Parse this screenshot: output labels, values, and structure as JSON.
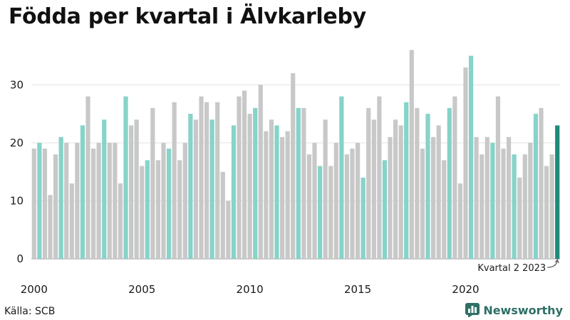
{
  "title": "Födda per kvartal i Älvkarleby",
  "source": "Källa: SCB",
  "brand": {
    "name": "Newsworthy",
    "icon": "bar-chart-logo-icon"
  },
  "colors": {
    "other_quarter": "#c8c8c8",
    "quarter_2": "#86d3c9",
    "latest": "#1f8a78"
  },
  "chart_data": {
    "type": "bar",
    "title": "Födda per kvartal i Älvkarleby",
    "xlabel": "",
    "ylabel": "",
    "ylim": [
      0,
      38
    ],
    "yticks": [
      0,
      10,
      20,
      30
    ],
    "xtick_labels": [
      "2000",
      "2005",
      "2010",
      "2015",
      "2020"
    ],
    "grid": true,
    "start": {
      "year": 2000,
      "quarter": 1
    },
    "highlight_quarter": 2,
    "annotation": "Kvartal 2 2023",
    "values": [
      19,
      20,
      19,
      11,
      18,
      21,
      20,
      13,
      20,
      23,
      28,
      19,
      20,
      24,
      20,
      20,
      13,
      28,
      23,
      24,
      16,
      17,
      26,
      17,
      20,
      19,
      27,
      17,
      20,
      25,
      24,
      28,
      27,
      24,
      27,
      15,
      10,
      23,
      28,
      29,
      25,
      26,
      30,
      22,
      24,
      23,
      21,
      22,
      32,
      26,
      26,
      18,
      20,
      16,
      24,
      16,
      20,
      28,
      18,
      19,
      20,
      14,
      26,
      24,
      28,
      17,
      21,
      24,
      23,
      27,
      36,
      26,
      19,
      25,
      21,
      23,
      17,
      26,
      28,
      13,
      33,
      35,
      21,
      18,
      21,
      20,
      28,
      19,
      21,
      18,
      14,
      18,
      20,
      25,
      26,
      16,
      18,
      23
    ]
  }
}
